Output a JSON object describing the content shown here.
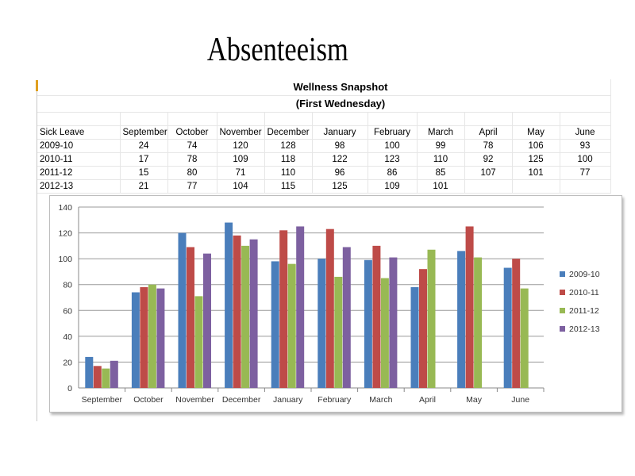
{
  "slide": {
    "title": "Absenteeism"
  },
  "table": {
    "title_line1": "Wellness Snapshot",
    "title_line2": "(First Wednesday)",
    "header": [
      "Sick Leave",
      "September",
      "October",
      "November",
      "December",
      "January",
      "February",
      "March",
      "April",
      "May",
      "June"
    ],
    "rows": [
      [
        "2009-10",
        "24",
        "74",
        "120",
        "128",
        "98",
        "100",
        "99",
        "78",
        "106",
        "93"
      ],
      [
        "2010-11",
        "17",
        "78",
        "109",
        "118",
        "122",
        "123",
        "110",
        "92",
        "125",
        "100"
      ],
      [
        "2011-12",
        "15",
        "80",
        "71",
        "110",
        "96",
        "86",
        "85",
        "107",
        "101",
        "77"
      ],
      [
        "2012-13",
        "21",
        "77",
        "104",
        "115",
        "125",
        "109",
        "101",
        "",
        "",
        ""
      ]
    ]
  },
  "chart_data": {
    "type": "bar",
    "title": "",
    "xlabel": "",
    "ylabel": "",
    "categories": [
      "September",
      "October",
      "November",
      "December",
      "January",
      "February",
      "March",
      "April",
      "May",
      "June"
    ],
    "series": [
      {
        "name": "2009-10",
        "color": "#4a7ebb",
        "values": [
          24,
          74,
          120,
          128,
          98,
          100,
          99,
          78,
          106,
          93
        ]
      },
      {
        "name": "2010-11",
        "color": "#be4b48",
        "values": [
          17,
          78,
          109,
          118,
          122,
          123,
          110,
          92,
          125,
          100
        ]
      },
      {
        "name": "2011-12",
        "color": "#98b954",
        "values": [
          15,
          80,
          71,
          110,
          96,
          86,
          85,
          107,
          101,
          77
        ]
      },
      {
        "name": "2012-13",
        "color": "#7d60a0",
        "values": [
          21,
          77,
          104,
          115,
          125,
          109,
          101,
          null,
          null,
          null
        ]
      }
    ],
    "ylim": [
      0,
      140
    ],
    "yticks": [
      0,
      20,
      40,
      60,
      80,
      100,
      120,
      140
    ],
    "grid": true,
    "legend": "right"
  }
}
